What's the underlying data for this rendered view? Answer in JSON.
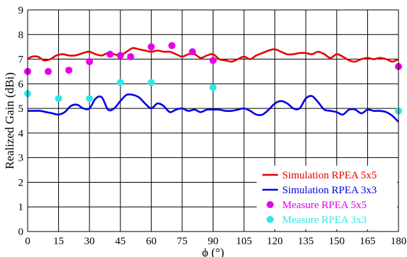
{
  "chart_data": {
    "type": "line",
    "title": "",
    "xlabel": "ϕ (°)",
    "ylabel": "Realized Gain (dBi)",
    "xlim": [
      0,
      180
    ],
    "ylim": [
      0,
      9
    ],
    "xticks": [
      "0",
      "15",
      "30",
      "45",
      "60",
      "75",
      "90",
      "105",
      "120",
      "135",
      "150",
      "165",
      "180"
    ],
    "yticks": [
      "0",
      "1",
      "2",
      "3",
      "4",
      "5",
      "6",
      "7",
      "8",
      "9"
    ],
    "grid": true,
    "legend_position": "bottom-right",
    "series": [
      {
        "name": "Simulation RPEA 5x5",
        "kind": "line",
        "color": "#e60000",
        "x": [
          0,
          2,
          5,
          8,
          11,
          14,
          17,
          20,
          23,
          27,
          30,
          33,
          36,
          39,
          42,
          45,
          48,
          51,
          54,
          57,
          60,
          63,
          66,
          69,
          72,
          75,
          78,
          81,
          84,
          87,
          90,
          93,
          96,
          99,
          102,
          105,
          108,
          111,
          114,
          117,
          120,
          123,
          126,
          129,
          132,
          135,
          138,
          141,
          144,
          147,
          150,
          153,
          156,
          159,
          162,
          165,
          168,
          171,
          174,
          177,
          180
        ],
        "y": [
          7.0,
          7.1,
          7.1,
          6.95,
          7.0,
          7.15,
          7.2,
          7.15,
          7.15,
          7.25,
          7.3,
          7.2,
          7.15,
          7.25,
          7.2,
          7.15,
          7.3,
          7.45,
          7.4,
          7.35,
          7.3,
          7.35,
          7.3,
          7.3,
          7.2,
          7.1,
          7.2,
          7.2,
          7.05,
          7.15,
          7.2,
          7.0,
          6.95,
          6.9,
          7.0,
          7.1,
          7.0,
          7.15,
          7.25,
          7.35,
          7.4,
          7.3,
          7.2,
          7.2,
          7.25,
          7.25,
          7.2,
          7.3,
          7.2,
          7.05,
          7.2,
          7.1,
          6.95,
          6.9,
          7.0,
          7.05,
          7.0,
          7.05,
          7.0,
          6.9,
          7.0
        ]
      },
      {
        "name": "Simulation RPEA 3x3",
        "kind": "line",
        "color": "#0000e6",
        "x": [
          0,
          3,
          6,
          9,
          12,
          15,
          18,
          21,
          24,
          27,
          30,
          33,
          36,
          39,
          42,
          45,
          48,
          51,
          54,
          57,
          60,
          63,
          66,
          69,
          72,
          75,
          78,
          81,
          84,
          87,
          90,
          93,
          96,
          99,
          102,
          105,
          108,
          111,
          114,
          117,
          120,
          123,
          126,
          129,
          132,
          135,
          138,
          141,
          144,
          147,
          150,
          153,
          156,
          159,
          162,
          165,
          168,
          171,
          174,
          177,
          180
        ],
        "y": [
          4.9,
          4.9,
          4.9,
          4.85,
          4.8,
          4.75,
          4.85,
          5.1,
          5.15,
          5.0,
          5.0,
          5.4,
          5.45,
          4.95,
          5.0,
          5.3,
          5.55,
          5.55,
          5.45,
          5.2,
          5.0,
          5.2,
          5.1,
          4.85,
          4.95,
          5.0,
          4.9,
          4.95,
          4.85,
          4.95,
          4.95,
          4.95,
          4.9,
          4.9,
          4.95,
          5.0,
          4.9,
          4.75,
          4.75,
          4.95,
          5.2,
          5.3,
          5.2,
          5.0,
          5.0,
          5.4,
          5.5,
          5.25,
          4.95,
          4.9,
          4.85,
          4.75,
          4.95,
          4.95,
          4.8,
          4.95,
          4.9,
          4.9,
          4.85,
          4.7,
          4.45
        ]
      },
      {
        "name": "Measure RPEA 5x5",
        "kind": "scatter",
        "color": "#e600e6",
        "x": [
          0,
          10,
          20,
          30,
          40,
          45,
          50,
          60,
          70,
          80,
          90,
          180
        ],
        "y": [
          6.5,
          6.5,
          6.55,
          6.9,
          7.2,
          7.15,
          7.1,
          7.5,
          7.55,
          7.3,
          6.95,
          6.7
        ]
      },
      {
        "name": "Measure RPEA 3x3",
        "kind": "scatter",
        "color": "#33e6e6",
        "x": [
          0,
          15,
          30,
          45,
          60,
          90,
          180
        ],
        "y": [
          5.6,
          5.4,
          5.4,
          6.05,
          6.05,
          5.85,
          4.9
        ]
      }
    ]
  }
}
